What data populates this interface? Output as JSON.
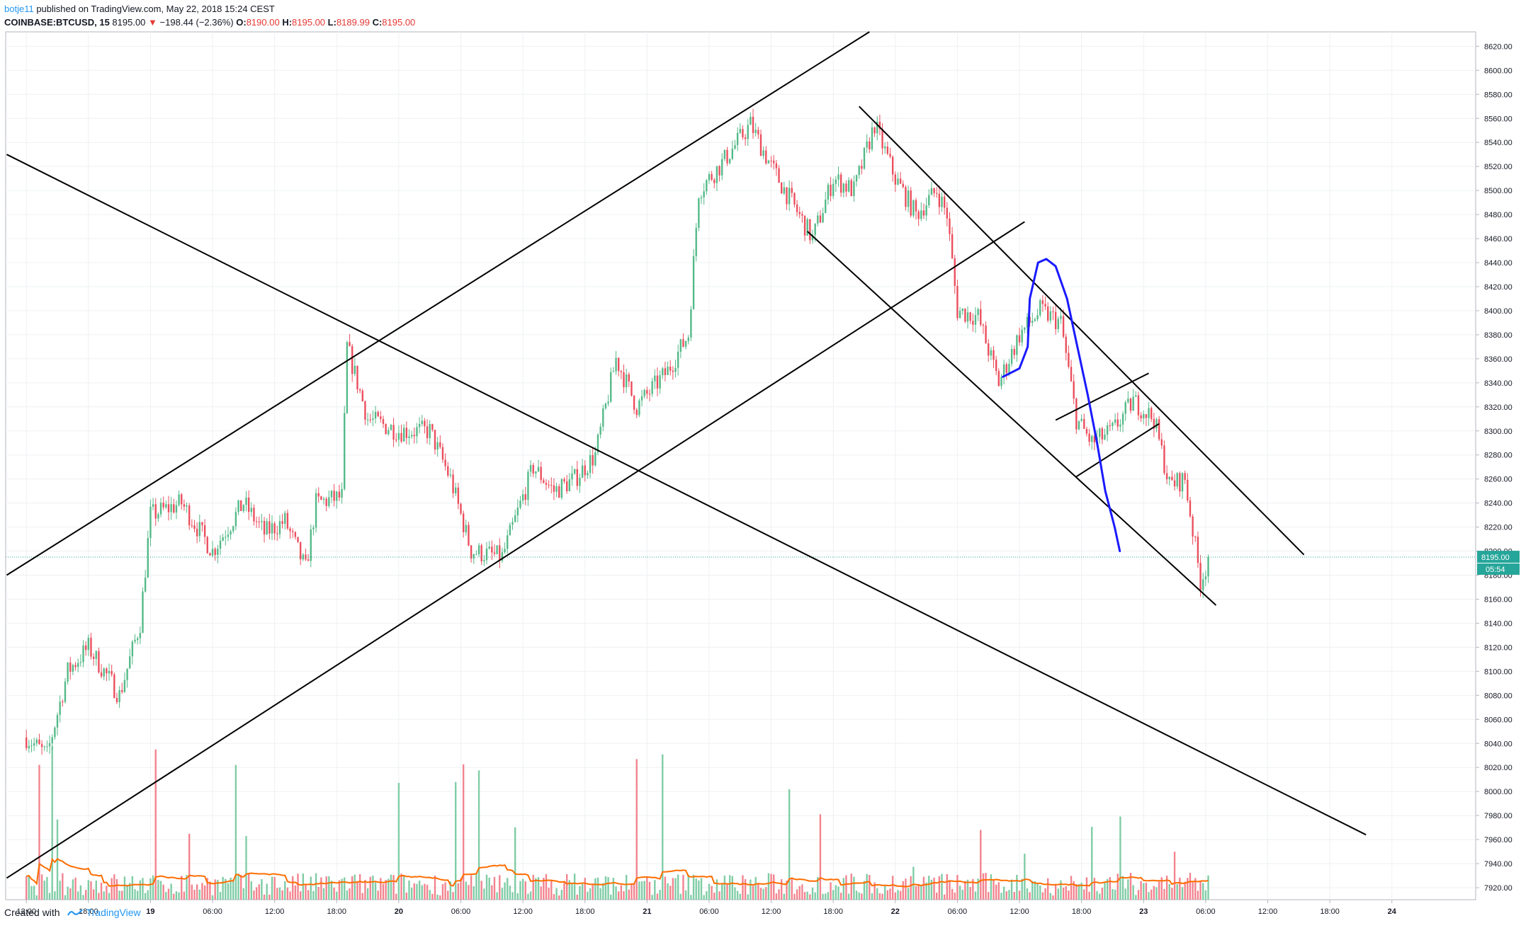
{
  "header": {
    "author": "botje11",
    "published_text": "published on TradingView.com, May 22, 2018 15:24 CEST",
    "symbol": "COINBASE:BTCUSD, 15",
    "last": "8195.00",
    "change": "−198.44 (−2.36%)",
    "o_label": "O:",
    "o_value": "8190.00",
    "h_label": "H:",
    "h_value": "8195.00",
    "l_label": "L:",
    "l_value": "8189.99",
    "c_label": "C:",
    "c_value": "8195.00"
  },
  "footer": {
    "created_with": "Created with",
    "brand": "TradingView"
  },
  "colors": {
    "up": "#53b987",
    "down": "#eb4d5c",
    "volume_up": "#7fcca5",
    "volume_down": "#f2838e",
    "ma": "#ff6d00",
    "ma2": "#ff9800",
    "drawing": "#000000",
    "curve": "#1a1aff",
    "price_line": "#26a69a",
    "grid": "#eef0f3",
    "axis_text": "#131722"
  },
  "chart_data": {
    "type": "candlestick",
    "symbol": "COINBASE:BTCUSD",
    "interval": "15",
    "y_axis": {
      "ticks": [
        7920,
        7940,
        7960,
        7980,
        8000,
        8020,
        8040,
        8060,
        8080,
        8100,
        8120,
        8140,
        8160,
        8180,
        8200,
        8220,
        8240,
        8260,
        8280,
        8300,
        8320,
        8340,
        8360,
        8380,
        8400,
        8420,
        8440,
        8460,
        8480,
        8500,
        8520,
        8540,
        8560,
        8580,
        8600,
        8620
      ],
      "range": [
        7910,
        8632
      ]
    },
    "x_axis": {
      "ticks": [
        "12:00",
        "18:00",
        "19",
        "06:00",
        "12:00",
        "18:00",
        "20",
        "06:00",
        "12:00",
        "18:00",
        "21",
        "06:00",
        "12:00",
        "18:00",
        "22",
        "06:00",
        "12:00",
        "18:00",
        "23",
        "06:00",
        "12:00",
        "18:00",
        "24"
      ],
      "bold": [
        2,
        6,
        10,
        14,
        18,
        22
      ],
      "range_hours": [
        -2.0,
        140.1
      ]
    },
    "last_price": "8195.00",
    "countdown": "05:54",
    "price_key_points": [
      {
        "hour": 0,
        "price": 8045
      },
      {
        "hour": 2,
        "price": 8030
      },
      {
        "hour": 4,
        "price": 8100
      },
      {
        "hour": 6,
        "price": 8120
      },
      {
        "hour": 9,
        "price": 8080
      },
      {
        "hour": 11,
        "price": 8140
      },
      {
        "hour": 12,
        "price": 8230
      },
      {
        "hour": 15,
        "price": 8240
      },
      {
        "hour": 18,
        "price": 8200
      },
      {
        "hour": 21,
        "price": 8240
      },
      {
        "hour": 23,
        "price": 8215
      },
      {
        "hour": 25,
        "price": 8225
      },
      {
        "hour": 27,
        "price": 8185
      },
      {
        "hour": 28,
        "price": 8240
      },
      {
        "hour": 30.5,
        "price": 8245
      },
      {
        "hour": 31,
        "price": 8370
      },
      {
        "hour": 33,
        "price": 8310
      },
      {
        "hour": 36,
        "price": 8300
      },
      {
        "hour": 39,
        "price": 8300
      },
      {
        "hour": 41,
        "price": 8260
      },
      {
        "hour": 43,
        "price": 8200
      },
      {
        "hour": 46,
        "price": 8195
      },
      {
        "hour": 49,
        "price": 8270
      },
      {
        "hour": 51,
        "price": 8250
      },
      {
        "hour": 53,
        "price": 8260
      },
      {
        "hour": 55,
        "price": 8280
      },
      {
        "hour": 57,
        "price": 8360
      },
      {
        "hour": 59,
        "price": 8320
      },
      {
        "hour": 61,
        "price": 8340
      },
      {
        "hour": 62,
        "price": 8350
      },
      {
        "hour": 64,
        "price": 8380
      },
      {
        "hour": 65,
        "price": 8500
      },
      {
        "hour": 67,
        "price": 8520
      },
      {
        "hour": 70,
        "price": 8555
      },
      {
        "hour": 72,
        "price": 8520
      },
      {
        "hour": 74,
        "price": 8490
      },
      {
        "hour": 76,
        "price": 8460
      },
      {
        "hour": 78,
        "price": 8510
      },
      {
        "hour": 80,
        "price": 8500
      },
      {
        "hour": 82,
        "price": 8555
      },
      {
        "hour": 84,
        "price": 8510
      },
      {
        "hour": 86,
        "price": 8480
      },
      {
        "hour": 88,
        "price": 8500
      },
      {
        "hour": 89,
        "price": 8480
      },
      {
        "hour": 90,
        "price": 8400
      },
      {
        "hour": 92,
        "price": 8395
      },
      {
        "hour": 94,
        "price": 8340
      },
      {
        "hour": 96,
        "price": 8380
      },
      {
        "hour": 98,
        "price": 8400
      },
      {
        "hour": 100,
        "price": 8390
      },
      {
        "hour": 101.5,
        "price": 8310
      },
      {
        "hour": 103,
        "price": 8290
      },
      {
        "hour": 105,
        "price": 8300
      },
      {
        "hour": 107,
        "price": 8325
      },
      {
        "hour": 109,
        "price": 8310
      },
      {
        "hour": 110.5,
        "price": 8255
      },
      {
        "hour": 112,
        "price": 8260
      },
      {
        "hour": 113.5,
        "price": 8175
      },
      {
        "hour": 114.4,
        "price": 8195
      }
    ],
    "drawings": [
      {
        "type": "trendline",
        "from": {
          "hour": -1.9,
          "price": 8180
        },
        "to": {
          "hour": 81.5,
          "price": 8632
        }
      },
      {
        "type": "trendline",
        "from": {
          "hour": -1.9,
          "price": 7928
        },
        "to": {
          "hour": 96.5,
          "price": 8474
        }
      },
      {
        "type": "trendline",
        "from": {
          "hour": -1.9,
          "price": 8530
        },
        "to": {
          "hour": 129.5,
          "price": 7964
        }
      },
      {
        "type": "trendline",
        "from": {
          "hour": 80.5,
          "price": 8570
        },
        "to": {
          "hour": 123.5,
          "price": 8197
        }
      },
      {
        "type": "trendline",
        "from": {
          "hour": 75.5,
          "price": 8466
        },
        "to": {
          "hour": 115.0,
          "price": 8155
        }
      },
      {
        "type": "trendline",
        "from": {
          "hour": 99.5,
          "price": 8309
        },
        "to": {
          "hour": 108.5,
          "price": 8348
        }
      },
      {
        "type": "trendline",
        "from": {
          "hour": 101.5,
          "price": 8262
        },
        "to": {
          "hour": 109.5,
          "price": 8306
        }
      }
    ],
    "curve": [
      {
        "hour": 94.4,
        "price": 8345
      },
      {
        "hour": 96.0,
        "price": 8352
      },
      {
        "hour": 96.8,
        "price": 8370
      },
      {
        "hour": 97.0,
        "price": 8410
      },
      {
        "hour": 97.8,
        "price": 8440
      },
      {
        "hour": 98.6,
        "price": 8443
      },
      {
        "hour": 99.5,
        "price": 8437
      },
      {
        "hour": 100.6,
        "price": 8410
      },
      {
        "hour": 101.6,
        "price": 8370
      },
      {
        "hour": 102.6,
        "price": 8330
      },
      {
        "hour": 103.5,
        "price": 8290
      },
      {
        "hour": 104.3,
        "price": 8250
      },
      {
        "hour": 105.2,
        "price": 8220
      },
      {
        "hour": 105.7,
        "price": 8200
      }
    ]
  }
}
